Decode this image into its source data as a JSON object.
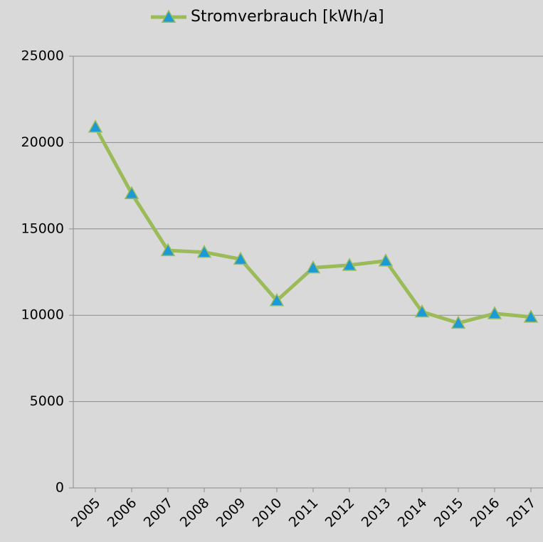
{
  "chart_data": {
    "type": "line",
    "categories": [
      "2005",
      "2006",
      "2007",
      "2008",
      "2009",
      "2010",
      "2011",
      "2012",
      "2013",
      "2014",
      "2015",
      "2016",
      "2017"
    ],
    "series": [
      {
        "name": "Stromverbrauch [kWh/a]",
        "color": "#9bbb59",
        "marker_color": "#1c9ad6",
        "values": [
          20900,
          17050,
          13750,
          13650,
          13250,
          10850,
          12750,
          12900,
          13150,
          10200,
          9550,
          10100,
          9900
        ]
      }
    ],
    "ylim": [
      0,
      25000
    ],
    "yticks": [
      0,
      5000,
      10000,
      15000,
      20000,
      25000
    ],
    "grid": true,
    "legend": "top"
  }
}
